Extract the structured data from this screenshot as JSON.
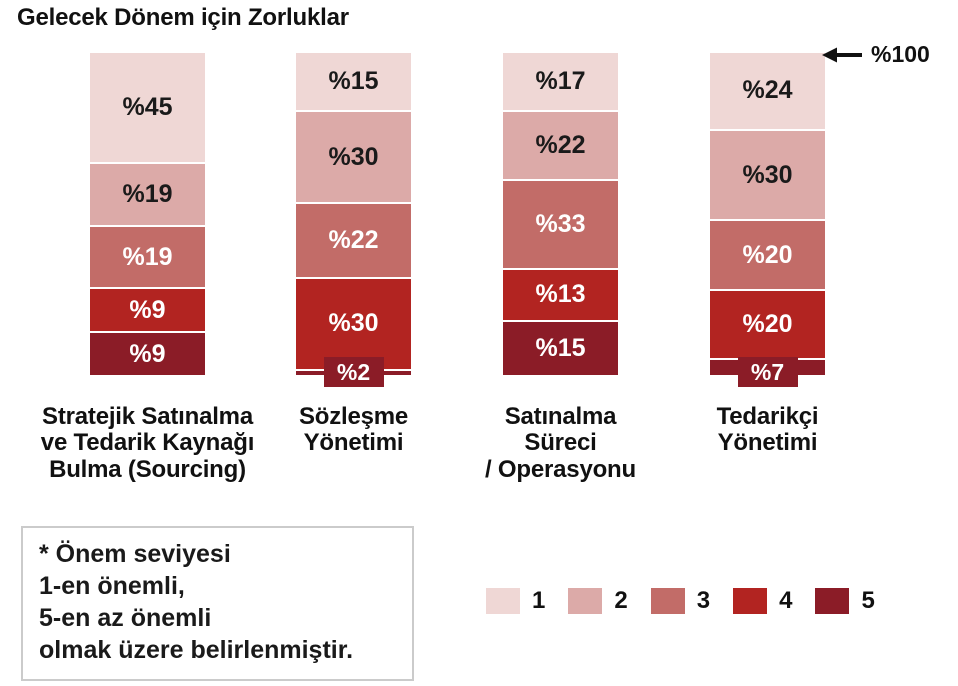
{
  "title": "Gelecek Dönem için Zorluklar",
  "annotation": {
    "label": "%100"
  },
  "note": {
    "lines": [
      "* Önem seviyesi",
      "1-en önemli,",
      "5-en az önemli",
      "olmak üzere belirlenmiştir."
    ]
  },
  "legend": {
    "items": [
      {
        "label": "1",
        "color": "#efd7d5"
      },
      {
        "label": "2",
        "color": "#dcaaa8"
      },
      {
        "label": "3",
        "color": "#c26c68"
      },
      {
        "label": "4",
        "color": "#b22421"
      },
      {
        "label": "5",
        "color": "#8b1c27"
      }
    ]
  },
  "chart_data": {
    "type": "bar",
    "variant": "stacked-vertical",
    "title": "Gelecek Dönem için Zorluklar",
    "value_prefix": "%",
    "ylim": [
      0,
      100
    ],
    "grid": false,
    "legend_position": "bottom-right",
    "axis_annotation": "%100",
    "categories": [
      "Stratejik Satınalma ve Tedarik Kaynağı Bulma (Sourcing)",
      "Sözleşme Yönetimi",
      "Satınalma Süreci / Operasyonu",
      "Tedarikçi Yönetimi"
    ],
    "category_label_lines": [
      [
        "Stratejik Satınalma",
        "ve Tedarik Kaynağı",
        "Bulma (Sourcing)"
      ],
      [
        "Sözleşme",
        "Yönetimi"
      ],
      [
        "Satınalma",
        "Süreci",
        "/ Operasyonu"
      ],
      [
        "Tedarikçi",
        "Yönetimi"
      ]
    ],
    "series": [
      {
        "name": "1",
        "color": "#efd7d5",
        "text_color": "#1a1a1a",
        "values": [
          45,
          15,
          17,
          24
        ]
      },
      {
        "name": "2",
        "color": "#dcaaa8",
        "text_color": "#1a1a1a",
        "values": [
          19,
          30,
          22,
          30
        ]
      },
      {
        "name": "3",
        "color": "#c26c68",
        "text_color": "#ffffff",
        "values": [
          19,
          22,
          33,
          20
        ]
      },
      {
        "name": "4",
        "color": "#b22421",
        "text_color": "#ffffff",
        "values": [
          9,
          30,
          13,
          20
        ]
      },
      {
        "name": "5",
        "color": "#8b1c27",
        "text_color": "#ffffff",
        "values": [
          9,
          2,
          15,
          7
        ]
      }
    ]
  }
}
